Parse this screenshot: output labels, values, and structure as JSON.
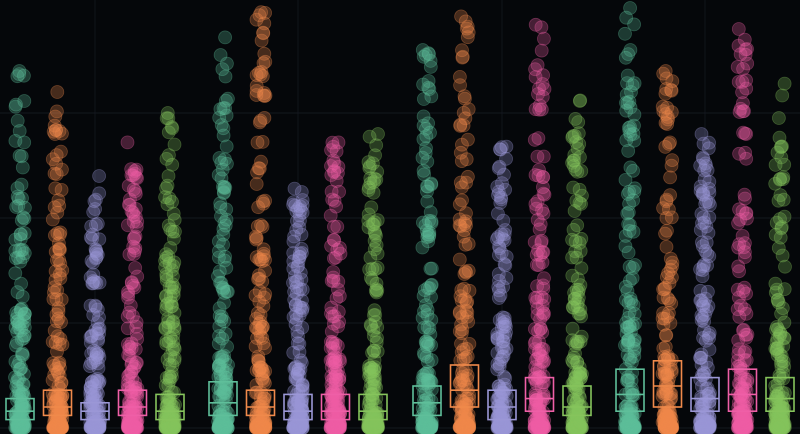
{
  "chart_data": {
    "type": "scatter",
    "subtype": "strip-plot-with-boxes",
    "groups": [
      {
        "name": "",
        "series": [
          {
            "color": "#5fbf9a",
            "q1": 2,
            "median": 4,
            "q3": 7,
            "max": 85
          },
          {
            "color": "#f08a4b",
            "q1": 3,
            "median": 5,
            "q3": 9,
            "max": 80
          },
          {
            "color": "#9b97d6",
            "q1": 2,
            "median": 4,
            "q3": 6,
            "max": 60
          },
          {
            "color": "#ef5fa7",
            "q1": 3,
            "median": 5,
            "q3": 9,
            "max": 68
          },
          {
            "color": "#86c45c",
            "q1": 2,
            "median": 4,
            "q3": 8,
            "max": 75
          }
        ]
      },
      {
        "name": "",
        "series": [
          {
            "color": "#5fbf9a",
            "q1": 3,
            "median": 6,
            "q3": 11,
            "max": 93
          },
          {
            "color": "#f08a4b",
            "q1": 3,
            "median": 5,
            "q3": 9,
            "max": 99
          },
          {
            "color": "#9b97d6",
            "q1": 2,
            "median": 4,
            "q3": 8,
            "max": 57
          },
          {
            "color": "#ef5fa7",
            "q1": 2,
            "median": 4,
            "q3": 8,
            "max": 68
          },
          {
            "color": "#86c45c",
            "q1": 2,
            "median": 4,
            "q3": 8,
            "max": 70
          }
        ]
      },
      {
        "name": "",
        "series": [
          {
            "color": "#5fbf9a",
            "q1": 3,
            "median": 6,
            "q3": 10,
            "max": 90
          },
          {
            "color": "#f08a4b",
            "q1": 5,
            "median": 9,
            "q3": 15,
            "max": 98
          },
          {
            "color": "#9b97d6",
            "q1": 2,
            "median": 5,
            "q3": 9,
            "max": 67
          },
          {
            "color": "#ef5fa7",
            "q1": 4,
            "median": 7,
            "q3": 12,
            "max": 96
          },
          {
            "color": "#86c45c",
            "q1": 3,
            "median": 5,
            "q3": 10,
            "max": 78
          }
        ]
      },
      {
        "name": "",
        "series": [
          {
            "color": "#5fbf9a",
            "q1": 4,
            "median": 8,
            "q3": 14,
            "max": 100
          },
          {
            "color": "#f08a4b",
            "q1": 5,
            "median": 10,
            "q3": 16,
            "max": 85
          },
          {
            "color": "#9b97d6",
            "q1": 4,
            "median": 7,
            "q3": 12,
            "max": 70
          },
          {
            "color": "#ef5fa7",
            "q1": 4,
            "median": 8,
            "q3": 14,
            "max": 95
          },
          {
            "color": "#86c45c",
            "q1": 4,
            "median": 7,
            "q3": 12,
            "max": 82
          }
        ]
      }
    ],
    "ylim": [
      0,
      100
    ],
    "grid": true,
    "background": "#05070a",
    "title": "",
    "xlabel": "",
    "ylabel": ""
  }
}
